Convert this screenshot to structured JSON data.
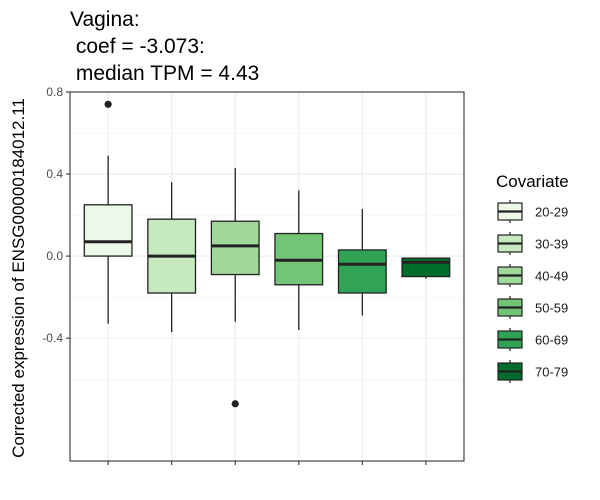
{
  "chart_data": {
    "type": "boxplot",
    "title_lines": [
      "Vagina:",
      " coef = -3.073:",
      " median TPM = 4.43"
    ],
    "xlabel": "",
    "ylabel": "Corrected expression of ENSG00000184012.11",
    "ylim": [
      -0.8,
      0.8
    ],
    "yticks": [
      -0.4,
      0.0,
      0.4,
      0.8
    ],
    "ytick_labels": [
      "-0.4",
      "0.0",
      "0.4",
      "0.8"
    ],
    "grid": true,
    "legend": {
      "title": "Covariate",
      "position": "right"
    },
    "categories": [
      "20-29",
      "30-39",
      "40-49",
      "50-59",
      "60-69",
      "70-79"
    ],
    "boxes": [
      {
        "name": "20-29",
        "color": "#edf8e9",
        "whisker_low": -0.33,
        "q1": 0.0,
        "median": 0.07,
        "q3": 0.25,
        "whisker_high": 0.49,
        "outliers": [
          0.74
        ]
      },
      {
        "name": "30-39",
        "color": "#c7e9c0",
        "whisker_low": -0.37,
        "q1": -0.18,
        "median": 0.0,
        "q3": 0.18,
        "whisker_high": 0.36,
        "outliers": []
      },
      {
        "name": "40-49",
        "color": "#a1d99b",
        "whisker_low": -0.32,
        "q1": -0.09,
        "median": 0.05,
        "q3": 0.17,
        "whisker_high": 0.43,
        "outliers": [
          -0.72
        ]
      },
      {
        "name": "50-59",
        "color": "#74c476",
        "whisker_low": -0.36,
        "q1": -0.14,
        "median": -0.02,
        "q3": 0.11,
        "whisker_high": 0.32,
        "outliers": []
      },
      {
        "name": "60-69",
        "color": "#31a354",
        "whisker_low": -0.29,
        "q1": -0.18,
        "median": -0.04,
        "q3": 0.03,
        "whisker_high": 0.23,
        "outliers": []
      },
      {
        "name": "70-79",
        "color": "#006d2c",
        "whisker_low": -0.11,
        "q1": -0.1,
        "median": -0.03,
        "q3": -0.01,
        "whisker_high": -0.01,
        "outliers": []
      }
    ]
  }
}
